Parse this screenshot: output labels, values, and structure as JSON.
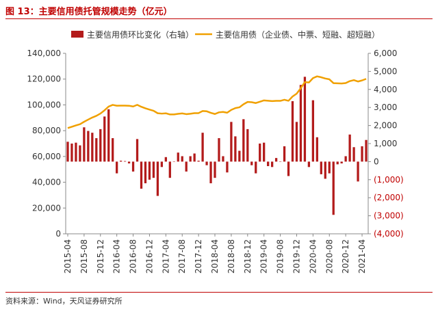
{
  "header": {
    "title": "图 13：主要信用债托管规模走势（亿元）"
  },
  "footer": {
    "source": "资料来源：Wind，天风证券研究所"
  },
  "colors": {
    "bar": "#b31b1b",
    "line": "#f0a000",
    "title": "#c00000",
    "negative_label": "#c00000"
  },
  "chart_data": {
    "type": "bar+line",
    "legend": {
      "position": "top",
      "entries": [
        "主要信用债环比变化（右轴）",
        "主要信用债（企业债、中票、短融、超短融）"
      ]
    },
    "x_tick_labels": [
      "2015-04",
      "2015-08",
      "2015-12",
      "2016-04",
      "2016-08",
      "2016-12",
      "2017-04",
      "2017-08",
      "2017-12",
      "2018-04",
      "2018-08",
      "2018-12",
      "2019-04",
      "2019-08",
      "2019-12",
      "2020-04",
      "2020-08",
      "2020-12",
      "2021-04"
    ],
    "left_axis": {
      "ylim": [
        0,
        140000
      ],
      "ticks": [
        "0",
        "20,000",
        "40,000",
        "60,000",
        "80,000",
        "100,000",
        "120,000",
        "140,000"
      ]
    },
    "right_axis": {
      "ylim": [
        -4000,
        6000
      ],
      "ticks": [
        "(4,000)",
        "(3,000)",
        "(2,000)",
        "(1,000)",
        "0",
        "1,000",
        "2,000",
        "3,000",
        "4,000",
        "5,000",
        "6,000"
      ]
    },
    "x": [
      "2015-04",
      "2015-05",
      "2015-06",
      "2015-07",
      "2015-08",
      "2015-09",
      "2015-10",
      "2015-11",
      "2015-12",
      "2016-01",
      "2016-02",
      "2016-03",
      "2016-04",
      "2016-05",
      "2016-06",
      "2016-07",
      "2016-08",
      "2016-09",
      "2016-10",
      "2016-11",
      "2016-12",
      "2017-01",
      "2017-02",
      "2017-03",
      "2017-04",
      "2017-05",
      "2017-06",
      "2017-07",
      "2017-08",
      "2017-09",
      "2017-10",
      "2017-11",
      "2017-12",
      "2018-01",
      "2018-02",
      "2018-03",
      "2018-04",
      "2018-05",
      "2018-06",
      "2018-07",
      "2018-08",
      "2018-09",
      "2018-10",
      "2018-11",
      "2018-12",
      "2019-01",
      "2019-02",
      "2019-03",
      "2019-04",
      "2019-05",
      "2019-06",
      "2019-07",
      "2019-08",
      "2019-09",
      "2019-10",
      "2019-11",
      "2019-12",
      "2020-01",
      "2020-02",
      "2020-03",
      "2020-04",
      "2020-05",
      "2020-06",
      "2020-07",
      "2020-08",
      "2020-09",
      "2020-10",
      "2020-11",
      "2020-12",
      "2021-01",
      "2021-02",
      "2021-03",
      "2021-04",
      "2021-05"
    ],
    "series": [
      {
        "name": "主要信用债环比变化（右轴）",
        "type": "bar",
        "axis": "right",
        "values": [
          1100,
          1000,
          1050,
          900,
          1900,
          1700,
          1600,
          1300,
          1800,
          2500,
          2900,
          1300,
          -650,
          50,
          30,
          -100,
          -550,
          1250,
          -1500,
          -1200,
          -1000,
          -900,
          -1900,
          -300,
          250,
          -900,
          0,
          500,
          300,
          -550,
          300,
          450,
          50,
          1600,
          -200,
          -1200,
          -900,
          1300,
          300,
          -600,
          2200,
          1400,
          600,
          2350,
          1800,
          -200,
          -650,
          1000,
          1050,
          -250,
          -300,
          200,
          0,
          850,
          -800,
          3350,
          2200,
          4250,
          4700,
          -300,
          3400,
          1350,
          -700,
          -950,
          -650,
          -2950,
          -150,
          -100,
          300,
          1500,
          800,
          -1100,
          850,
          1200
        ]
      },
      {
        "name": "主要信用债（企业债、中票、短融、超短融）",
        "type": "line",
        "axis": "left",
        "values": [
          82000,
          83000,
          84100,
          85000,
          86900,
          88600,
          90200,
          91500,
          93300,
          95800,
          98700,
          100000,
          99350,
          99400,
          99430,
          99330,
          98780,
          100030,
          98530,
          97330,
          96330,
          95430,
          93530,
          93230,
          93480,
          92580,
          92580,
          93080,
          93380,
          92830,
          93130,
          93580,
          93630,
          95230,
          95030,
          93830,
          92930,
          94230,
          94530,
          93930,
          96130,
          97530,
          98130,
          100480,
          102280,
          102080,
          101430,
          102430,
          103480,
          103230,
          102930,
          103130,
          103130,
          103980,
          103180,
          106530,
          108730,
          112980,
          117680,
          117380,
          120780,
          122130,
          121430,
          120480,
          119830,
          116880,
          116730,
          116630,
          116930,
          118430,
          119230,
          118130,
          118980,
          120180
        ]
      }
    ]
  }
}
